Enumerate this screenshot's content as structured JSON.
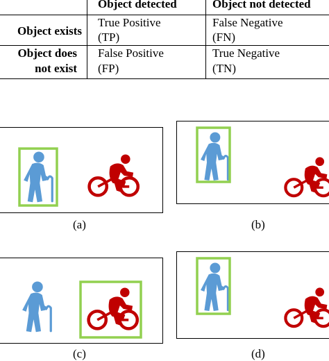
{
  "table": {
    "header": {
      "detected": "Object detected",
      "not_detected": "Object not detected"
    },
    "rows": [
      {
        "label_line1": "Object exists",
        "label_line2": "",
        "cells": [
          {
            "line1": "True Positive",
            "line2": "(TP)"
          },
          {
            "line1": "False Negative",
            "line2": "(FN)"
          }
        ]
      },
      {
        "label_line1": "Object does",
        "label_line2": "not exist",
        "cells": [
          {
            "line1": "False Positive",
            "line2": "(FP)"
          },
          {
            "line1": "True Negative",
            "line2": "(TN)"
          }
        ]
      }
    ]
  },
  "panels": [
    {
      "caption": "(a)",
      "box_on": "pedestrian"
    },
    {
      "caption": "(b)",
      "box_on": "pedestrian"
    },
    {
      "caption": "(c)",
      "box_on": "cyclist"
    },
    {
      "caption": "(d)",
      "box_on": "pedestrian"
    }
  ],
  "colors": {
    "pedestrian": "#5b9bd5",
    "cyclist": "#c00000",
    "bounding_box": "#92d050",
    "frame": "#000000"
  },
  "icons": {
    "pedestrian": "elderly-person-with-cane-icon",
    "cyclist": "cyclist-icon"
  }
}
